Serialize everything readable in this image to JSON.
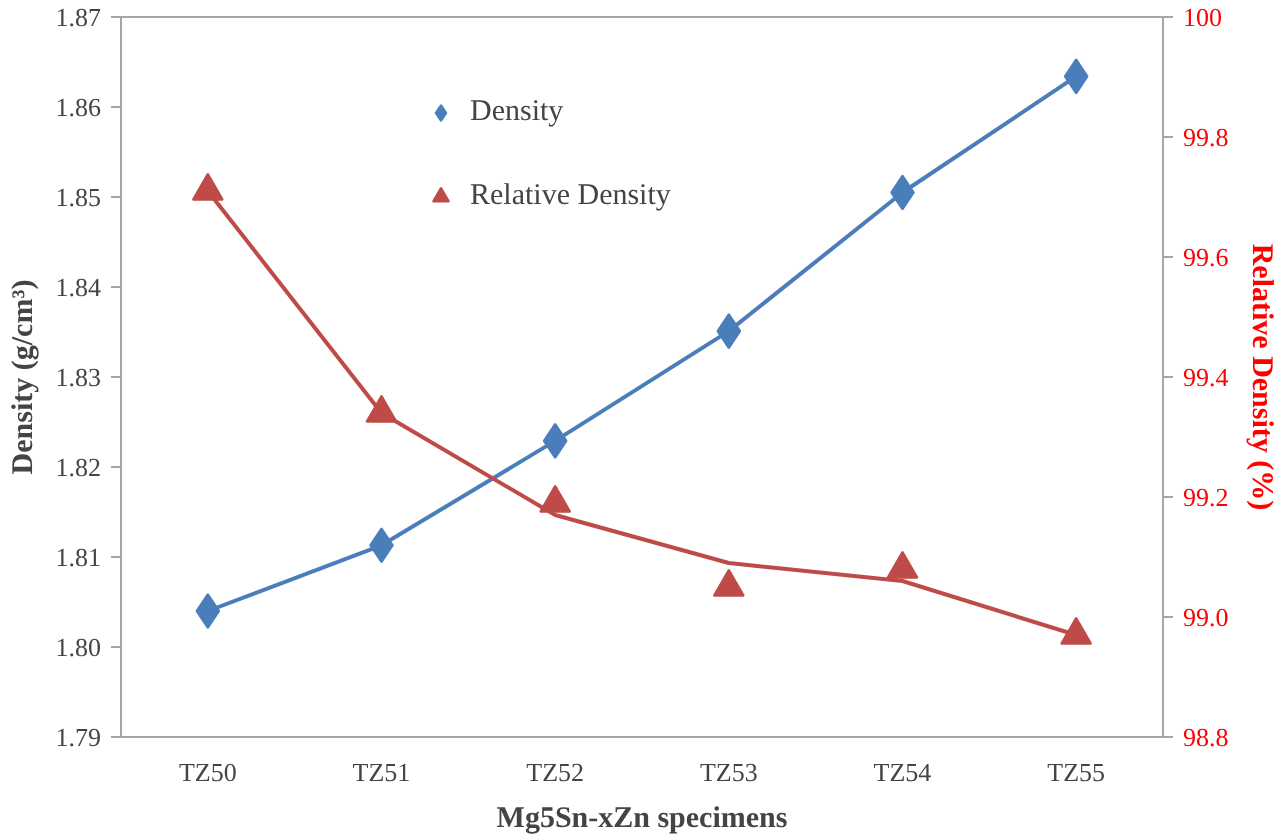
{
  "chart_data": {
    "type": "line",
    "xlabel": "Mg5Sn-xZn specimens",
    "ylabel": "Density (g/cm³)",
    "y2label": "Relative Density (%)",
    "categories": [
      "TZ50",
      "TZ51",
      "TZ52",
      "TZ53",
      "TZ54",
      "TZ55"
    ],
    "ylim": [
      1.79,
      1.87
    ],
    "yticks": [
      1.79,
      {
        "value": 1.8,
        "label": "1.80"
      },
      1.81,
      1.82,
      1.83,
      1.84,
      1.85,
      1.86,
      1.87
    ],
    "y2lim": [
      98.8,
      100
    ],
    "y2ticks": [
      98.8,
      {
        "value": 99.0,
        "label": "99.0"
      },
      99.2,
      99.4,
      99.6,
      99.8,
      100
    ],
    "grid": false,
    "legend": "top",
    "series": [
      {
        "name": "Density",
        "type": "scatter",
        "marker": "diamond",
        "color": "#4a7ebb",
        "values": [
          1.804,
          1.8113,
          1.8229,
          1.8351,
          1.8505,
          1.8634
        ]
      },
      {
        "name": "Relative Density",
        "type": "scatter",
        "marker": "triangle",
        "axis": "y2",
        "color": "#be4b48",
        "values": [
          99.71,
          99.34,
          99.19,
          99.05,
          99.08,
          98.97
        ]
      },
      {
        "color": "#4a7ebb",
        "values": [
          1.804,
          1.8113,
          1.8229,
          1.8351,
          1.8505,
          1.8634
        ]
      },
      {
        "axis": "y2",
        "color": "#be4b48",
        "values": [
          99.71,
          99.34,
          99.17,
          99.09,
          99.06,
          98.97
        ]
      }
    ]
  }
}
